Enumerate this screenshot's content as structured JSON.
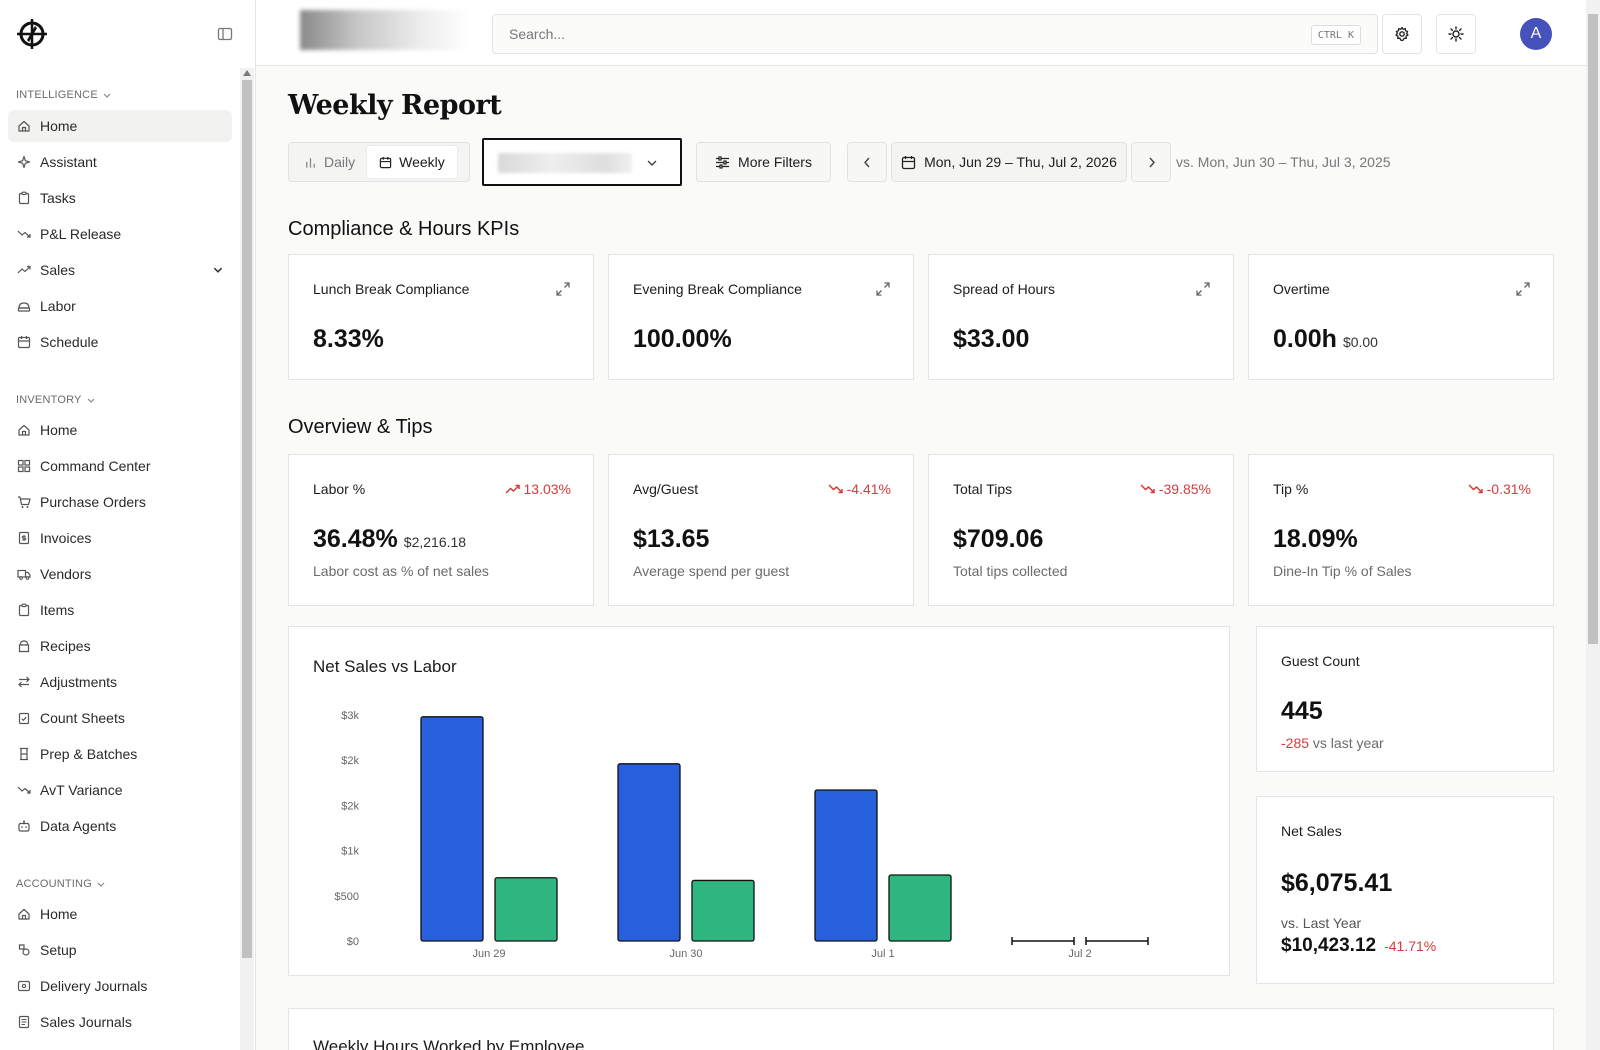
{
  "sidebar": {
    "intelligence_label": "INTELLIGENCE",
    "inventory_label": "INVENTORY",
    "accounting_label": "ACCOUNTING",
    "intelligence": [
      {
        "label": "Home",
        "icon": "home-icon"
      },
      {
        "label": "Assistant",
        "icon": "sparkle-icon"
      },
      {
        "label": "Tasks",
        "icon": "clipboard-icon"
      },
      {
        "label": "P&L Release",
        "icon": "trend-down-icon"
      },
      {
        "label": "Sales",
        "icon": "trend-up-icon"
      },
      {
        "label": "Labor",
        "icon": "labor-icon"
      },
      {
        "label": "Schedule",
        "icon": "calendar-icon"
      }
    ],
    "inventory": [
      {
        "label": "Home",
        "icon": "home-icon"
      },
      {
        "label": "Command Center",
        "icon": "grid-icon"
      },
      {
        "label": "Purchase Orders",
        "icon": "cart-icon"
      },
      {
        "label": "Invoices",
        "icon": "invoice-icon"
      },
      {
        "label": "Vendors",
        "icon": "truck-icon"
      },
      {
        "label": "Items",
        "icon": "clipboard-icon"
      },
      {
        "label": "Recipes",
        "icon": "recipe-icon"
      },
      {
        "label": "Adjustments",
        "icon": "arrows-icon"
      },
      {
        "label": "Count Sheets",
        "icon": "clipboard-check-icon"
      },
      {
        "label": "Prep & Batches",
        "icon": "batch-icon"
      },
      {
        "label": "AvT Variance",
        "icon": "trend-down-icon"
      },
      {
        "label": "Data Agents",
        "icon": "bot-icon"
      }
    ],
    "accounting": [
      {
        "label": "Home",
        "icon": "home-icon"
      },
      {
        "label": "Setup",
        "icon": "setup-icon"
      },
      {
        "label": "Delivery Journals",
        "icon": "journal-icon"
      },
      {
        "label": "Sales Journals",
        "icon": "journal-list-icon"
      }
    ]
  },
  "topbar": {
    "search_placeholder": "Search...",
    "shortcut": "CTRL K",
    "avatar_initial": "A"
  },
  "page": {
    "title": "Weekly Report",
    "view_daily": "Daily",
    "view_weekly": "Weekly",
    "more_filters": "More Filters",
    "date_range": "Mon, Jun 29 – Thu, Jul 2, 2026",
    "compare_range": "vs. Mon, Jun 30 – Thu, Jul 3, 2025"
  },
  "kpis": {
    "title": "Compliance & Hours KPIs",
    "cards": [
      {
        "label": "Lunch Break Compliance",
        "value": "8.33%"
      },
      {
        "label": "Evening Break Compliance",
        "value": "100.00%"
      },
      {
        "label": "Spread of Hours",
        "value": "$33.00"
      },
      {
        "label": "Overtime",
        "value": "0.00h",
        "sub": "$0.00"
      }
    ]
  },
  "overview": {
    "title": "Overview & Tips",
    "cards": [
      {
        "label": "Labor %",
        "trend": "13.03%",
        "value": "36.48%",
        "sub": "$2,216.18",
        "desc": "Labor cost as % of net sales"
      },
      {
        "label": "Avg/Guest",
        "trend": "-4.41%",
        "value": "$13.65",
        "desc": "Average spend per guest"
      },
      {
        "label": "Total Tips",
        "trend": "-39.85%",
        "value": "$709.06",
        "desc": "Total tips collected"
      },
      {
        "label": "Tip %",
        "trend": "-0.31%",
        "value": "18.09%",
        "desc": "Dine-In Tip % of Sales"
      }
    ]
  },
  "guest_count": {
    "label": "Guest Count",
    "value": "445",
    "delta": "-285",
    "delta_text": "vs last year"
  },
  "net_sales": {
    "label": "Net Sales",
    "value": "$6,075.41",
    "compare_label": "vs. Last Year",
    "compare_value": "$10,423.12",
    "compare_pct": "-41.71%"
  },
  "next_section_title": "Weekly Hours Worked by Employee",
  "colors": {
    "sales": "#2760dc",
    "labor": "#2fb57f",
    "negative": "#d43c3c"
  },
  "chart_data": {
    "type": "bar",
    "title": "Net Sales vs Labor",
    "categories": [
      "Jun 29",
      "Jun 30",
      "Jul 1",
      "Jul 2"
    ],
    "series": [
      {
        "values": [
          2480,
          1960,
          1670,
          0
        ]
      },
      {
        "values": [
          700,
          670,
          730,
          0
        ]
      }
    ],
    "ytick_labels": [
      "$0",
      "$500",
      "$1k",
      "$2k",
      "$2k",
      "$3k"
    ],
    "ytick_values": [
      0,
      500,
      1000,
      1500,
      2000,
      2500
    ],
    "ylim": [
      0,
      2500
    ],
    "grid": false,
    "legend": "none"
  }
}
